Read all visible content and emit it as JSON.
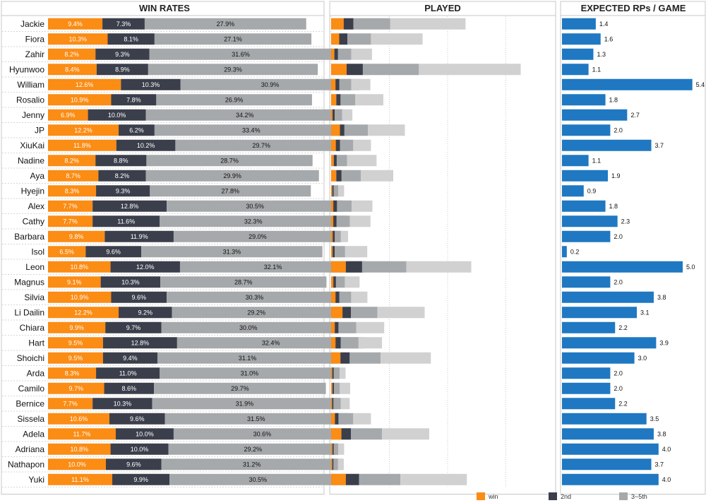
{
  "panels": {
    "win_rates": "WIN RATES",
    "played": "PLAYED",
    "expected": "EXPECTED RPs / GAME"
  },
  "legend": [
    {
      "label": "win",
      "color": "#fb8c14"
    },
    {
      "label": "2nd",
      "color": "#3b3f4b"
    },
    {
      "label": "3~5th",
      "color": "#a6a9ab"
    }
  ],
  "colors": {
    "win": "#fb8c14",
    "second": "#3b3f4b",
    "third_fifth": "#a6a9ab",
    "played_rest": "#d1d1d1",
    "expected": "#1f78c1",
    "panel_border": "#c7c7c7",
    "row_separator": "#d6d6d6"
  },
  "chart_data": {
    "type": "bar",
    "orientation": "horizontal",
    "stacked": true,
    "categories": [
      "Jackie",
      "Fiora",
      "Zahir",
      "Hyunwoo",
      "William",
      "Rosalio",
      "Jenny",
      "JP",
      "XiuKai",
      "Nadine",
      "Aya",
      "Hyejin",
      "Alex",
      "Cathy",
      "Barbara",
      "Isol",
      "Leon",
      "Magnus",
      "Silvia",
      "Li Dailin",
      "Chiara",
      "Hart",
      "Shoichi",
      "Arda",
      "Camilo",
      "Bernice",
      "Sissela",
      "Adela",
      "Adriana",
      "Nathapon",
      "Yuki"
    ],
    "win_rates": {
      "unit": "%",
      "series": [
        {
          "name": "win",
          "values": [
            9.4,
            10.3,
            8.2,
            8.4,
            12.6,
            10.9,
            6.9,
            12.2,
            11.8,
            8.2,
            8.7,
            8.3,
            7.7,
            7.7,
            9.8,
            6.5,
            10.8,
            9.1,
            10.9,
            12.2,
            9.9,
            9.5,
            9.5,
            8.3,
            9.7,
            7.7,
            10.6,
            11.7,
            10.8,
            10.0,
            11.1
          ]
        },
        {
          "name": "2nd",
          "values": [
            7.3,
            8.1,
            9.3,
            8.9,
            10.3,
            7.8,
            10.0,
            6.2,
            10.2,
            8.8,
            8.2,
            9.3,
            12.8,
            11.6,
            11.9,
            9.6,
            12.0,
            10.3,
            9.6,
            9.2,
            9.7,
            12.8,
            9.4,
            11.0,
            8.6,
            10.3,
            9.6,
            10.0,
            10.0,
            9.6,
            9.9
          ]
        },
        {
          "name": "3~5th",
          "values": [
            27.9,
            27.1,
            31.6,
            29.3,
            30.9,
            26.9,
            34.2,
            33.4,
            29.7,
            28.7,
            29.9,
            27.8,
            30.5,
            32.3,
            29.0,
            31.3,
            32.1,
            28.7,
            30.3,
            29.2,
            30.0,
            32.4,
            31.1,
            31.0,
            29.7,
            31.9,
            31.5,
            30.6,
            29.2,
            31.2,
            30.5
          ]
        }
      ]
    },
    "played": {
      "unit": "relative",
      "gridlines": true,
      "series": [
        {
          "name": "win",
          "values": [
            8.5,
            5.5,
            2.2,
            10.5,
            3.0,
            3.5,
            1.0,
            6.0,
            3.2,
            1.8,
            3.5,
            0.8,
            1.5,
            1.5,
            1.1,
            1.0,
            10.0,
            1.5,
            3.0,
            7.7,
            2.5,
            3.0,
            6.3,
            0.8,
            0.9,
            0.7,
            2.6,
            7.0,
            0.9,
            0.8,
            10.0
          ]
        },
        {
          "name": "2nd",
          "values": [
            6.6,
            5.5,
            2.5,
            11.0,
            2.6,
            2.9,
            1.4,
            3.0,
            2.8,
            2.0,
            3.6,
            1.0,
            2.5,
            2.2,
            1.4,
            1.5,
            11.0,
            1.8,
            2.6,
            5.7,
            2.5,
            3.5,
            6.3,
            1.0,
            1.0,
            0.9,
            2.4,
            6.5,
            0.9,
            0.8,
            9.0
          ]
        },
        {
          "name": "3~5th",
          "values": [
            25,
            16,
            9,
            38,
            8,
            10,
            5,
            16,
            9,
            7,
            13,
            3,
            10,
            9,
            4,
            7,
            30,
            6,
            8,
            18,
            12,
            12,
            21,
            4,
            4,
            5,
            10,
            21,
            3,
            3,
            28
          ]
        },
        {
          "name": "rest",
          "values": [
            51,
            35,
            14,
            69,
            13,
            19,
            7,
            25,
            12,
            20,
            22,
            4,
            14,
            14,
            5,
            15,
            44,
            10,
            11,
            32,
            19,
            16,
            34,
            4,
            7,
            6,
            12,
            32,
            4,
            4,
            45
          ]
        }
      ]
    },
    "expected_rps": [
      1.4,
      1.6,
      1.3,
      1.1,
      5.4,
      1.8,
      2.7,
      2.0,
      3.7,
      1.1,
      1.9,
      0.9,
      1.8,
      2.3,
      2.0,
      0.2,
      5.0,
      2.0,
      3.8,
      3.1,
      2.2,
      3.9,
      3.0,
      2.0,
      2.0,
      2.2,
      3.5,
      3.8,
      4.0,
      3.7,
      4.0
    ]
  }
}
